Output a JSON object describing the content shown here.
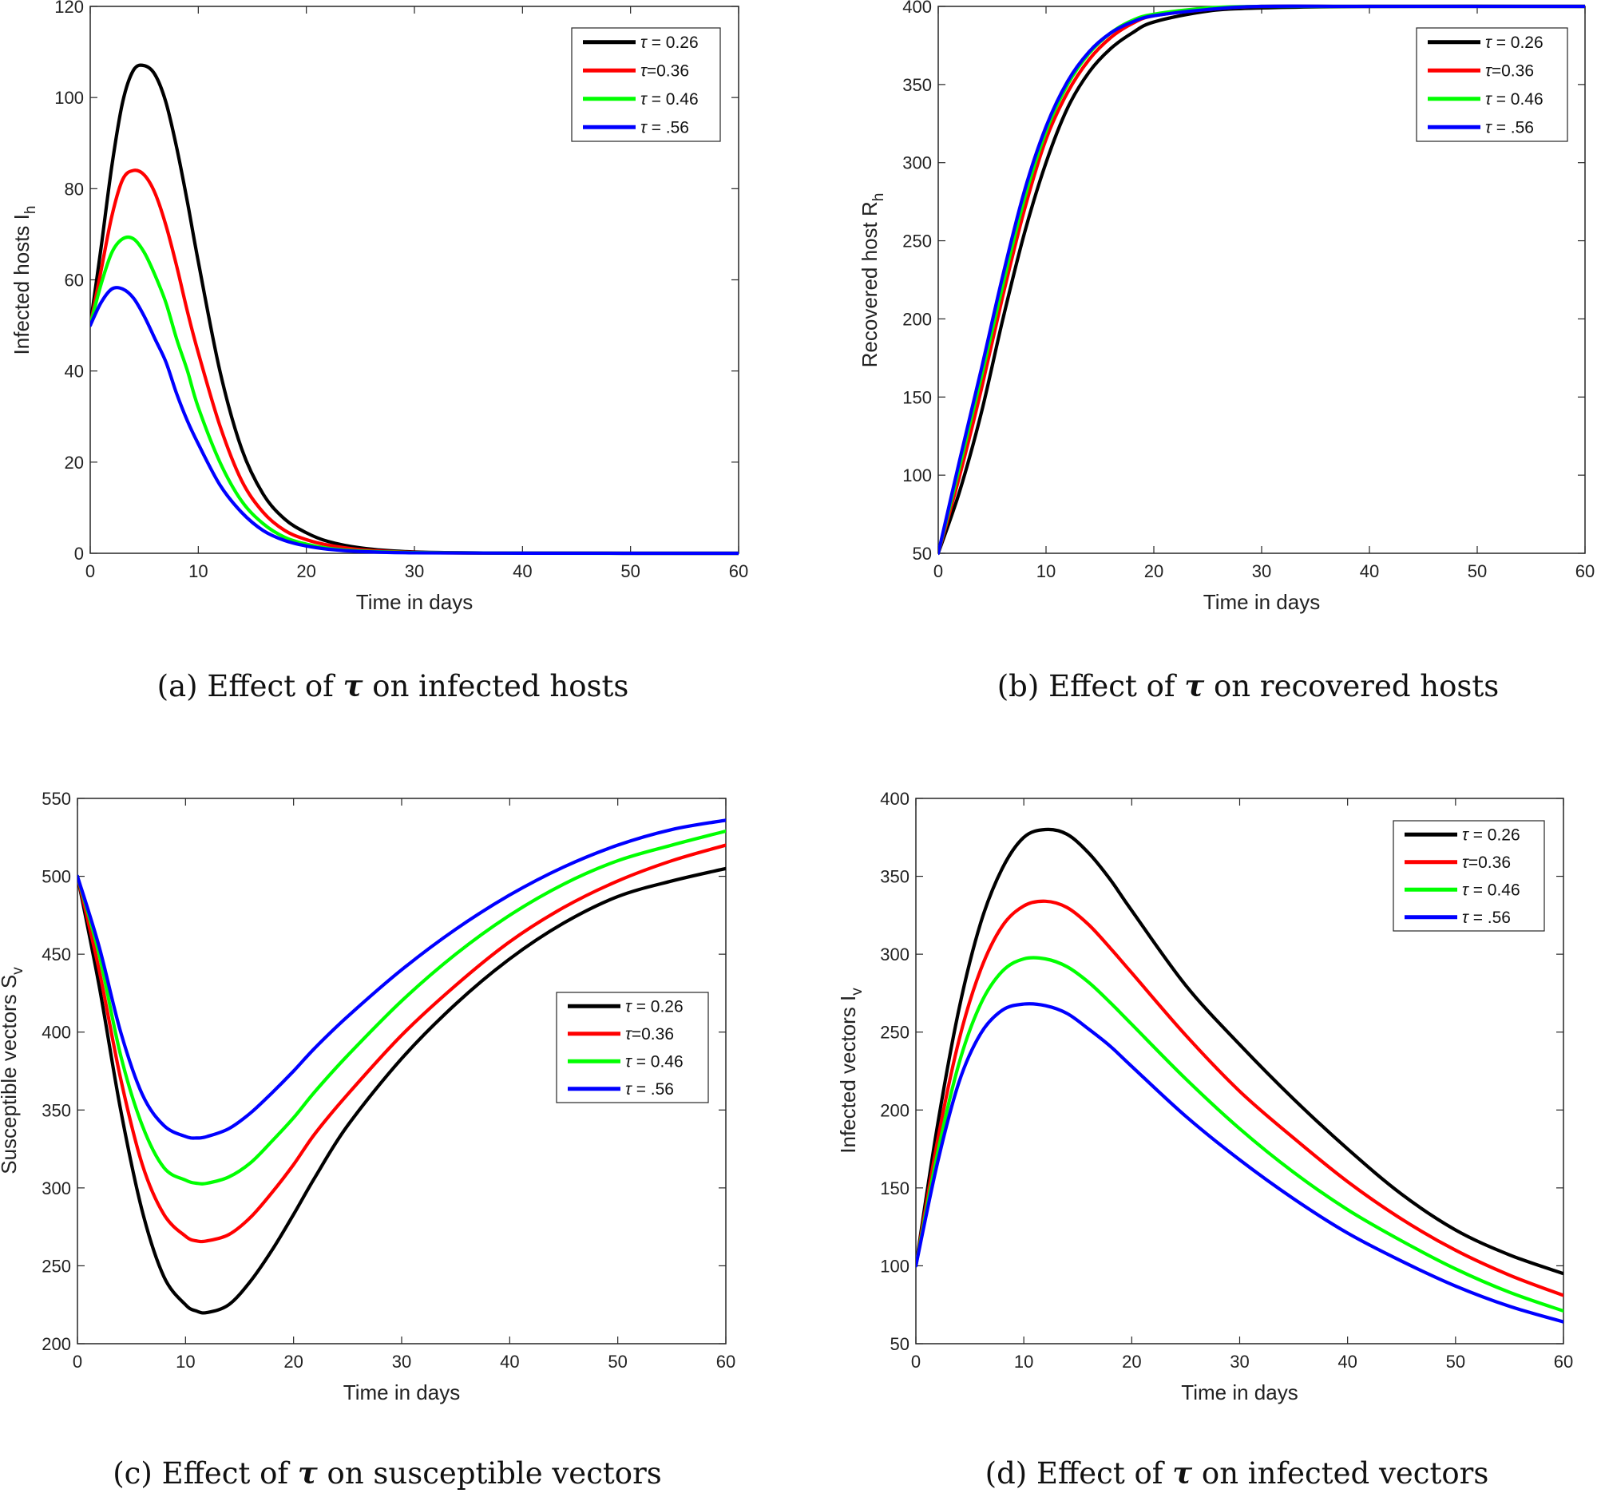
{
  "chart_data": [
    {
      "type": "line",
      "panel": "a",
      "caption": "(a) Effect of τ on infected hosts",
      "xlabel": "Time in days",
      "ylabel": "Infected  hosts I",
      "ylabel_sub": "h",
      "xlim": [
        0,
        60
      ],
      "ylim": [
        0,
        120
      ],
      "xticks": [
        0,
        10,
        20,
        30,
        40,
        50,
        60
      ],
      "yticks": [
        0,
        20,
        40,
        60,
        80,
        100,
        120
      ],
      "legend": "top-right",
      "grid": false,
      "series": [
        {
          "name": "τ = 0.26",
          "color": "#000000",
          "x": [
            0,
            1,
            2,
            3,
            4,
            5,
            6,
            7,
            8,
            9,
            10,
            12,
            14,
            16,
            18,
            20,
            22,
            25,
            30,
            40,
            60
          ],
          "y": [
            50,
            67,
            85,
            99,
            106,
            107,
            105,
            99,
            89,
            77,
            64,
            40,
            23,
            13,
            7.5,
            4.5,
            2.6,
            1.2,
            0.3,
            0.05,
            0
          ]
        },
        {
          "name": "τ=0.36",
          "color": "#ff0000",
          "x": [
            0,
            1,
            2,
            3,
            4,
            5,
            6,
            7,
            8,
            9,
            10,
            12,
            14,
            16,
            18,
            20,
            22,
            25,
            30,
            40,
            60
          ],
          "y": [
            50,
            62,
            74,
            82,
            84,
            83,
            79,
            72,
            63,
            53,
            44,
            28,
            16,
            9,
            5,
            3,
            1.8,
            0.8,
            0.2,
            0.03,
            0
          ]
        },
        {
          "name": "τ = 0.46",
          "color": "#00ff00",
          "x": [
            0,
            1,
            2,
            3,
            4,
            5,
            6,
            7,
            8,
            9,
            10,
            12,
            14,
            16,
            18,
            20,
            22,
            25,
            30,
            40,
            60
          ],
          "y": [
            50,
            59,
            66,
            69,
            69,
            66,
            61,
            55,
            47,
            40,
            32,
            20,
            11.5,
            6.5,
            3.5,
            2,
            1.1,
            0.5,
            0.15,
            0.02,
            0
          ]
        },
        {
          "name": "τ = .56",
          "color": "#0000ff",
          "x": [
            0,
            1,
            2,
            3,
            4,
            5,
            6,
            7,
            8,
            9,
            10,
            12,
            14,
            16,
            18,
            20,
            22,
            25,
            30,
            40,
            60
          ],
          "y": [
            50,
            55,
            58,
            58,
            56,
            52,
            47,
            42,
            35,
            29,
            24,
            15,
            9,
            5,
            2.8,
            1.6,
            0.9,
            0.4,
            0.1,
            0.02,
            0
          ]
        }
      ]
    },
    {
      "type": "line",
      "panel": "b",
      "caption": "(b) Effect of τ on recovered hosts",
      "xlabel": "Time in days",
      "ylabel": "Recovered host R",
      "ylabel_sub": "h",
      "xlim": [
        0,
        60
      ],
      "ylim": [
        50,
        400
      ],
      "xticks": [
        0,
        10,
        20,
        30,
        40,
        50,
        60
      ],
      "yticks": [
        50,
        100,
        150,
        200,
        250,
        300,
        350,
        400
      ],
      "legend": "top-right",
      "grid": false,
      "series": [
        {
          "name": "τ = 0.26",
          "color": "#000000",
          "x": [
            0,
            2,
            4,
            6,
            8,
            10,
            12,
            14,
            16,
            18,
            20,
            25,
            30,
            40,
            60
          ],
          "y": [
            50,
            90,
            140,
            200,
            255,
            300,
            335,
            358,
            373,
            383,
            390,
            397,
            399,
            400,
            400
          ]
        },
        {
          "name": "τ=0.36",
          "color": "#ff0000",
          "x": [
            0,
            2,
            4,
            6,
            8,
            10,
            12,
            14,
            16,
            18,
            20,
            25,
            30,
            40,
            60
          ],
          "y": [
            50,
            100,
            155,
            215,
            270,
            315,
            345,
            366,
            380,
            389,
            394,
            398,
            400,
            400,
            400
          ]
        },
        {
          "name": "τ = 0.46",
          "color": "#00ff00",
          "x": [
            0,
            2,
            4,
            6,
            8,
            10,
            12,
            14,
            16,
            18,
            20,
            25,
            30,
            40,
            60
          ],
          "y": [
            50,
            106,
            163,
            222,
            277,
            320,
            350,
            370,
            383,
            391,
            395,
            399,
            400,
            400,
            400
          ]
        },
        {
          "name": "τ = .56",
          "color": "#0000ff",
          "x": [
            0,
            2,
            4,
            6,
            8,
            10,
            12,
            14,
            16,
            18,
            20,
            25,
            30,
            40,
            60
          ],
          "y": [
            50,
            110,
            168,
            228,
            282,
            323,
            352,
            371,
            383,
            390,
            394,
            398,
            400,
            400,
            400
          ]
        }
      ]
    },
    {
      "type": "line",
      "panel": "c",
      "caption": "(c) Effect of τ on susceptible vectors",
      "xlabel": "Time in days",
      "ylabel": "Susceptible vectors S",
      "ylabel_sub": "v",
      "xlim": [
        0,
        60
      ],
      "ylim": [
        200,
        550
      ],
      "xticks": [
        0,
        10,
        20,
        30,
        40,
        50,
        60
      ],
      "yticks": [
        200,
        250,
        300,
        350,
        400,
        450,
        500,
        550
      ],
      "legend": "center-right",
      "grid": false,
      "series": [
        {
          "name": "τ = 0.26",
          "color": "#000000",
          "x": [
            0,
            2,
            4,
            6,
            8,
            10,
            11,
            12,
            14,
            16,
            18,
            20,
            22,
            25,
            30,
            35,
            40,
            45,
            50,
            55,
            60
          ],
          "y": [
            500,
            430,
            350,
            285,
            243,
            225,
            221,
            220,
            225,
            240,
            260,
            283,
            307,
            340,
            383,
            418,
            447,
            470,
            487,
            497,
            505
          ]
        },
        {
          "name": "τ=0.36",
          "color": "#ff0000",
          "x": [
            0,
            2,
            4,
            6,
            8,
            10,
            11,
            12,
            14,
            16,
            18,
            20,
            22,
            25,
            30,
            35,
            40,
            45,
            50,
            55,
            60
          ],
          "y": [
            500,
            440,
            370,
            315,
            283,
            269,
            266,
            266,
            270,
            281,
            297,
            315,
            335,
            360,
            398,
            430,
            458,
            480,
            497,
            510,
            520
          ]
        },
        {
          "name": "τ = 0.46",
          "color": "#00ff00",
          "x": [
            0,
            2,
            4,
            6,
            8,
            10,
            11,
            12,
            14,
            16,
            18,
            20,
            22,
            25,
            30,
            35,
            40,
            45,
            50,
            55,
            60
          ],
          "y": [
            500,
            450,
            385,
            340,
            313,
            305,
            303,
            303,
            307,
            316,
            330,
            345,
            362,
            385,
            420,
            450,
            475,
            495,
            510,
            520,
            529
          ]
        },
        {
          "name": "τ = .56",
          "color": "#0000ff",
          "x": [
            0,
            2,
            4,
            6,
            8,
            10,
            11,
            12,
            14,
            16,
            18,
            20,
            22,
            25,
            30,
            35,
            40,
            45,
            50,
            55,
            60
          ],
          "y": [
            500,
            455,
            400,
            360,
            340,
            333,
            332,
            333,
            338,
            348,
            361,
            375,
            390,
            410,
            440,
            466,
            488,
            506,
            520,
            530,
            536
          ]
        }
      ]
    },
    {
      "type": "line",
      "panel": "d",
      "caption": "(d) Effect of τ on infected vectors",
      "xlabel": "Time in days",
      "ylabel": "Infected vectors I",
      "ylabel_sub": "v",
      "xlim": [
        0,
        60
      ],
      "ylim": [
        50,
        400
      ],
      "xticks": [
        0,
        10,
        20,
        30,
        40,
        50,
        60
      ],
      "yticks": [
        50,
        100,
        150,
        200,
        250,
        300,
        350,
        400
      ],
      "legend": "top-right",
      "grid": false,
      "series": [
        {
          "name": "τ = 0.26",
          "color": "#000000",
          "x": [
            0,
            2,
            4,
            6,
            8,
            10,
            12,
            14,
            16,
            18,
            20,
            25,
            30,
            35,
            40,
            45,
            50,
            55,
            60
          ],
          "y": [
            100,
            190,
            265,
            320,
            355,
            375,
            380,
            377,
            365,
            348,
            328,
            280,
            242,
            207,
            175,
            146,
            123,
            107,
            95
          ]
        },
        {
          "name": "τ=0.36",
          "color": "#ff0000",
          "x": [
            0,
            2,
            4,
            6,
            8,
            10,
            12,
            14,
            16,
            18,
            20,
            25,
            30,
            35,
            40,
            45,
            50,
            55,
            60
          ],
          "y": [
            100,
            180,
            245,
            290,
            318,
            331,
            334,
            330,
            319,
            304,
            288,
            248,
            212,
            182,
            154,
            130,
            110,
            94,
            81
          ]
        },
        {
          "name": "τ = 0.46",
          "color": "#00ff00",
          "x": [
            0,
            2,
            4,
            6,
            8,
            10,
            12,
            14,
            16,
            18,
            20,
            25,
            30,
            35,
            40,
            45,
            50,
            55,
            60
          ],
          "y": [
            100,
            172,
            230,
            268,
            289,
            297,
            297,
            292,
            282,
            269,
            255,
            220,
            188,
            160,
            136,
            116,
            98,
            83,
            71
          ]
        },
        {
          "name": "τ = .56",
          "color": "#0000ff",
          "x": [
            0,
            2,
            4,
            6,
            8,
            10,
            12,
            14,
            16,
            18,
            20,
            25,
            30,
            35,
            40,
            45,
            50,
            55,
            60
          ],
          "y": [
            100,
            166,
            218,
            249,
            264,
            268,
            267,
            262,
            252,
            241,
            228,
            196,
            168,
            143,
            121,
            103,
            87,
            74,
            64
          ]
        }
      ]
    }
  ]
}
